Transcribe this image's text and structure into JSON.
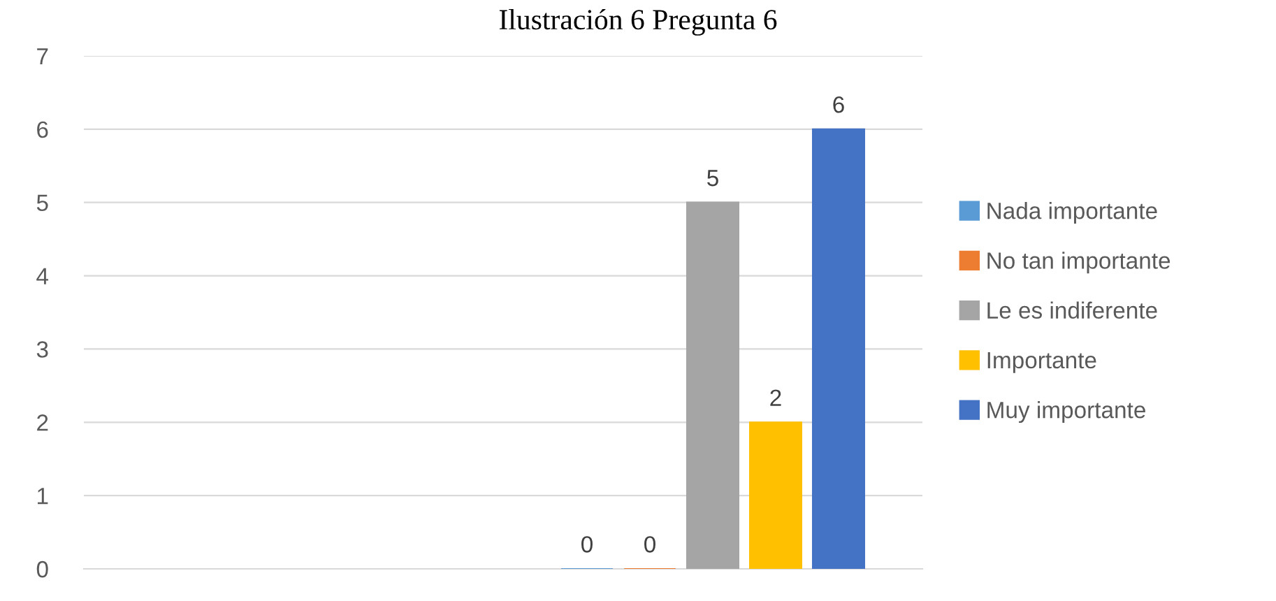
{
  "chart_data": {
    "type": "bar",
    "title": "Ilustración 6 Pregunta 6",
    "categories": [
      null,
      null
    ],
    "series": [
      {
        "name": "Nada importante",
        "color": "#5b9bd5",
        "values": [
          null,
          0
        ]
      },
      {
        "name": "No tan importante",
        "color": "#ed7d31",
        "values": [
          null,
          0
        ]
      },
      {
        "name": "Le es indiferente",
        "color": "#a5a5a5",
        "values": [
          null,
          5
        ]
      },
      {
        "name": "Importante",
        "color": "#ffc000",
        "values": [
          null,
          2
        ]
      },
      {
        "name": "Muy importante",
        "color": "#4472c4",
        "values": [
          null,
          6
        ]
      }
    ],
    "ylim": [
      0,
      7
    ],
    "yticks": [
      0,
      1,
      2,
      3,
      4,
      5,
      6,
      7
    ],
    "grid": "y",
    "legend": "right",
    "data_labels": true
  }
}
